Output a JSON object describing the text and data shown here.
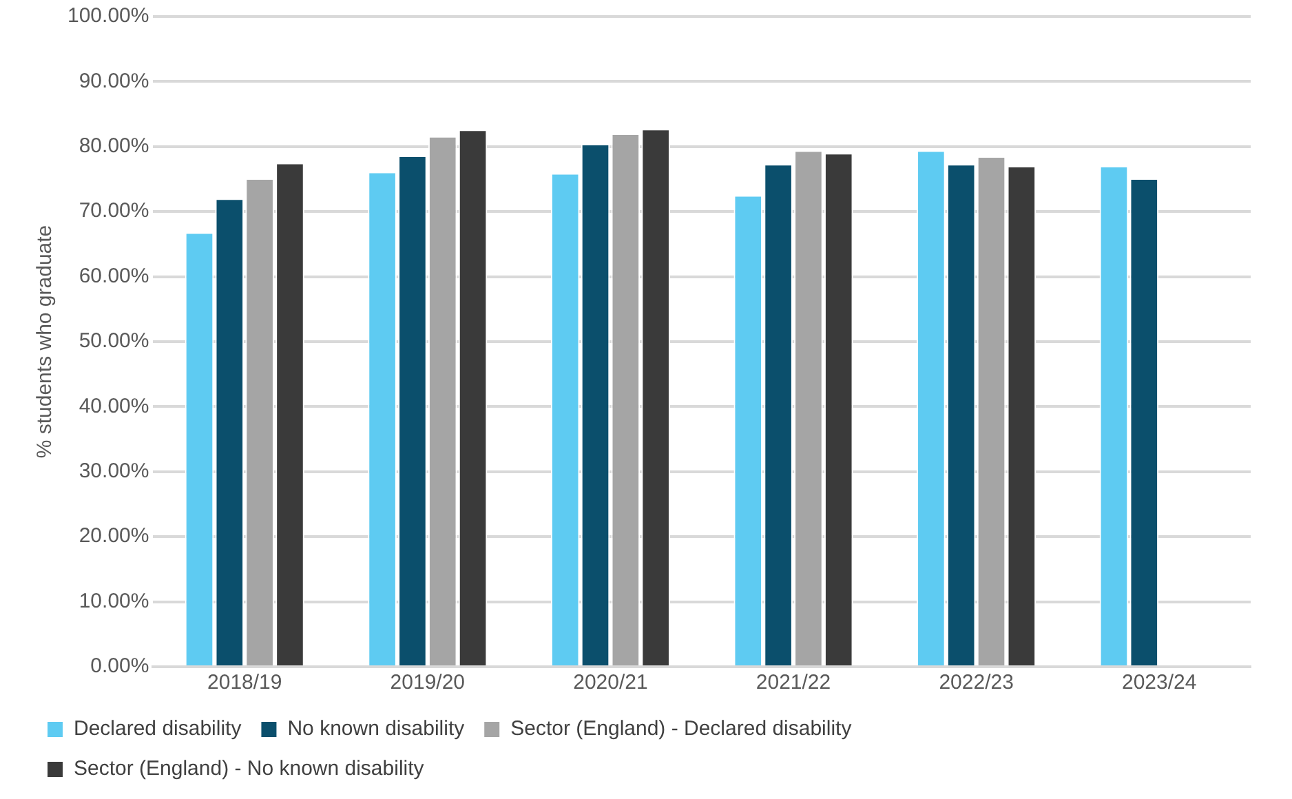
{
  "chart_data": {
    "type": "bar",
    "ylabel": "% students who graduate",
    "categories": [
      "2018/19",
      "2019/20",
      "2020/21",
      "2021/22",
      "2022/23",
      "2023/24"
    ],
    "series": [
      {
        "name": "Declared disability",
        "color": "#5ecbf2",
        "values": [
          66.8,
          76.1,
          75.9,
          72.5,
          79.4,
          77.0
        ]
      },
      {
        "name": "No known disability",
        "color": "#0b4f6c",
        "values": [
          72.0,
          78.6,
          80.4,
          77.3,
          77.3,
          75.1
        ]
      },
      {
        "name": "Sector (England) - Declared disability",
        "color": "#a5a5a5",
        "values": [
          75.1,
          81.6,
          82.0,
          79.4,
          78.5,
          null
        ]
      },
      {
        "name": "Sector (England) - No known disability",
        "color": "#3a3a3a",
        "values": [
          77.5,
          82.6,
          82.7,
          79.0,
          77.0,
          null
        ]
      }
    ],
    "ylim": [
      0,
      100
    ],
    "yticks": [
      {
        "value": 0,
        "label": "0.00%"
      },
      {
        "value": 10,
        "label": "10.00%"
      },
      {
        "value": 20,
        "label": "20.00%"
      },
      {
        "value": 30,
        "label": "30.00%"
      },
      {
        "value": 40,
        "label": "40.00%"
      },
      {
        "value": 50,
        "label": "50.00%"
      },
      {
        "value": 60,
        "label": "60.00%"
      },
      {
        "value": 70,
        "label": "70.00%"
      },
      {
        "value": 80,
        "label": "80.00%"
      },
      {
        "value": 90,
        "label": "90.00%"
      },
      {
        "value": 100,
        "label": "100.00%"
      }
    ],
    "grid": "y",
    "legend": "bottom"
  }
}
